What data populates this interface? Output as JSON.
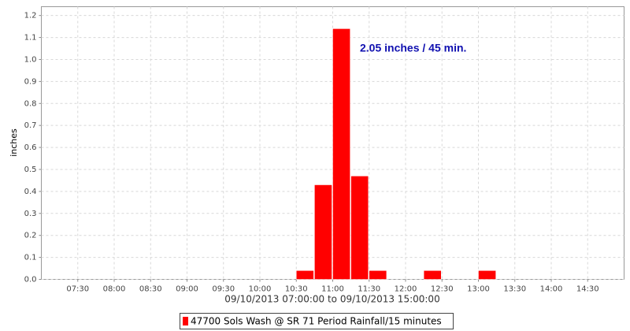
{
  "chart_data": {
    "type": "histogram",
    "x_label": "09/10/2013 07:00:00 to 09/10/2013 15:00:00",
    "y_label": "inches",
    "annotation": "2.05 inches / 45 min.",
    "bins": [
      "10:30",
      "10:45",
      "11:00",
      "11:15",
      "11:30",
      "11:45",
      "12:00",
      "12:15",
      "12:30",
      "12:45",
      "13:00",
      "13:15"
    ],
    "series": [
      {
        "name": "47700 Sols Wash @ SR 71 Period Rainfall/15 minutes",
        "color": "#ff0000",
        "values": [
          0.04,
          0.43,
          1.14,
          0.47,
          0.04,
          0,
          0,
          0.04,
          0,
          0,
          0.04
        ]
      }
    ],
    "xlim": [
      "07:00",
      "15:00"
    ],
    "xticks": [
      "07:30",
      "08:00",
      "08:30",
      "09:00",
      "09:30",
      "10:00",
      "10:30",
      "11:00",
      "11:30",
      "12:00",
      "12:30",
      "13:00",
      "13:30",
      "14:00",
      "14:30"
    ],
    "ylim": [
      0,
      1.24
    ],
    "yticks": [
      {
        "value": 0,
        "label": "0.0"
      },
      {
        "value": 0.1,
        "label": "0.1"
      },
      {
        "value": 0.2,
        "label": "0.2"
      },
      {
        "value": 0.3,
        "label": "0.3"
      },
      {
        "value": 0.4,
        "label": "0.4"
      },
      {
        "value": 0.5,
        "label": "0.5"
      },
      {
        "value": 0.6,
        "label": "0.6"
      },
      {
        "value": 0.7,
        "label": "0.7"
      },
      {
        "value": 0.8,
        "label": "0.8"
      },
      {
        "value": 0.9,
        "label": "0.9"
      },
      {
        "value": 1.0,
        "label": "1.0"
      },
      {
        "value": 1.1,
        "label": "1.1"
      },
      {
        "value": 1.2,
        "label": "1.2"
      }
    ],
    "grid": true
  }
}
